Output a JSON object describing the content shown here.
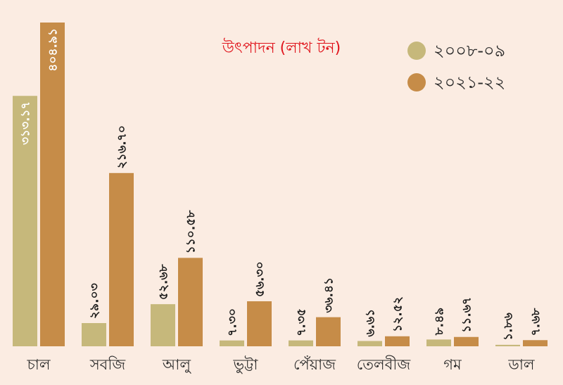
{
  "chart_data": {
    "type": "bar",
    "title": "উৎপাদন (লাখ টন)",
    "categories": [
      "চাল",
      "সবজি",
      "আলু",
      "ভুট্টা",
      "পেঁয়াজ",
      "তেলবীজ",
      "গম",
      "ডাল"
    ],
    "series": [
      {
        "name": "২০০৮-০৯",
        "color": "#c6b87b",
        "values": [
          313.17,
          29.03,
          52.68,
          7.3,
          7.35,
          6.61,
          8.49,
          1.86
        ],
        "labels": [
          "৩১৩.১৭",
          "২৯.০৩",
          "৫২.৬৮",
          "৭.৩০",
          "৭.৩৫",
          "৬.৬১",
          "৮.৪৯",
          "১.৮৬"
        ]
      },
      {
        "name": "২০২১-২২",
        "color": "#c68c48",
        "values": [
          404.91,
          216.7,
          110.58,
          56.3,
          36.41,
          12.52,
          11.67,
          7.68
        ],
        "labels": [
          "৪০৪.৯১",
          "২১৬.৭০",
          "১১০.৫৮",
          "৫৬.৩০",
          "৩৬.৪১",
          "১২.৫২",
          "১১.৬৭",
          "৭.৬৮"
        ]
      }
    ],
    "legend_position": "top-right",
    "grid": false
  }
}
